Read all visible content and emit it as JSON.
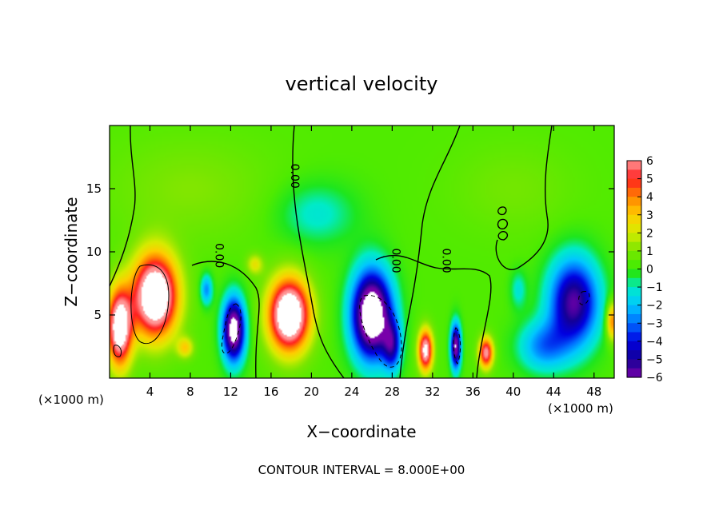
{
  "chart_data": {
    "type": "heatmap",
    "title": "vertical velocity",
    "xlabel": "X−coordinate",
    "ylabel": "Z−coordinate",
    "x_unit_left": "(×1000 m)",
    "x_unit_right": "(×1000 m)",
    "footer": "CONTOUR INTERVAL = 8.000E+00",
    "xlim": [
      0,
      50
    ],
    "ylim": [
      0,
      20
    ],
    "x_ticks": [
      4,
      8,
      12,
      16,
      20,
      24,
      28,
      32,
      36,
      40,
      44,
      48
    ],
    "y_ticks": [
      5,
      10,
      15
    ],
    "x_tick_labels": [
      "4",
      "8",
      "12",
      "16",
      "20",
      "24",
      "28",
      "32",
      "36",
      "40",
      "44",
      "48"
    ],
    "y_tick_labels": [
      "5",
      "10",
      "15"
    ],
    "colorbar": {
      "range": [
        -6,
        6
      ],
      "tick_values": [
        6,
        5,
        4,
        3,
        2,
        1,
        0,
        -1,
        -2,
        -3,
        -4,
        -5,
        -6
      ],
      "tick_labels": [
        "6",
        "5",
        "4",
        "3",
        "2",
        "1",
        "0",
        "−1",
        "−2",
        "−3",
        "−4",
        "−5",
        "−6"
      ]
    },
    "contour_labels": [
      {
        "text": "0.00",
        "x": 18,
        "z": 16
      },
      {
        "text": "0.00",
        "x": 10.5,
        "z": 9.7
      },
      {
        "text": "0.00",
        "x": 28,
        "z": 9.3
      },
      {
        "text": "0.00",
        "x": 33,
        "z": 9.3
      }
    ],
    "features": [
      {
        "x": 4.5,
        "z": 6.5,
        "sx": 2.2,
        "sz": 3.2,
        "w": 9
      },
      {
        "x": 1.0,
        "z": 4.0,
        "sx": 1.2,
        "sz": 3.0,
        "w": 8
      },
      {
        "x": 17.8,
        "z": 5.0,
        "sx": 2.0,
        "sz": 2.8,
        "w": 9
      },
      {
        "x": 31.3,
        "z": 2.2,
        "sx": 0.7,
        "sz": 1.6,
        "w": 7
      },
      {
        "x": 37.3,
        "z": 2.0,
        "sx": 0.7,
        "sz": 1.2,
        "w": 6
      },
      {
        "x": 14.4,
        "z": 9.0,
        "sx": 0.8,
        "sz": 0.8,
        "w": 2
      },
      {
        "x": 7.5,
        "z": 2.4,
        "sx": 0.8,
        "sz": 0.8,
        "w": 2.5
      },
      {
        "x": 49.8,
        "z": 4.5,
        "sx": 0.6,
        "sz": 1.5,
        "w": 4
      },
      {
        "x": 12.3,
        "z": 3.8,
        "sx": 1.1,
        "sz": 2.5,
        "w": -8
      },
      {
        "x": 9.6,
        "z": 7.0,
        "sx": 0.6,
        "sz": 1.2,
        "w": -3
      },
      {
        "x": 26.0,
        "z": 5.0,
        "sx": 2.0,
        "sz": 3.5,
        "w": -9
      },
      {
        "x": 28.0,
        "z": 2.5,
        "sx": 0.9,
        "sz": 2.0,
        "w": -4
      },
      {
        "x": 34.3,
        "z": 2.5,
        "sx": 0.5,
        "sz": 1.8,
        "w": -7
      },
      {
        "x": 46.0,
        "z": 6.0,
        "sx": 2.5,
        "sz": 3.5,
        "w": -6
      },
      {
        "x": 43.0,
        "z": 2.5,
        "sx": 2.5,
        "sz": 2.0,
        "w": -3
      },
      {
        "x": 20.5,
        "z": 13.0,
        "sx": 4.0,
        "sz": 2.5,
        "w": -1.5
      },
      {
        "x": 40.5,
        "z": 7.0,
        "sx": 0.8,
        "sz": 1.5,
        "w": -1.5
      },
      {
        "x": 8.0,
        "z": 15.0,
        "sx": 8.0,
        "sz": 4.0,
        "w": 0.8
      },
      {
        "x": 40.0,
        "z": 15.0,
        "sx": 6.0,
        "sz": 3.5,
        "w": 0.6
      }
    ]
  }
}
